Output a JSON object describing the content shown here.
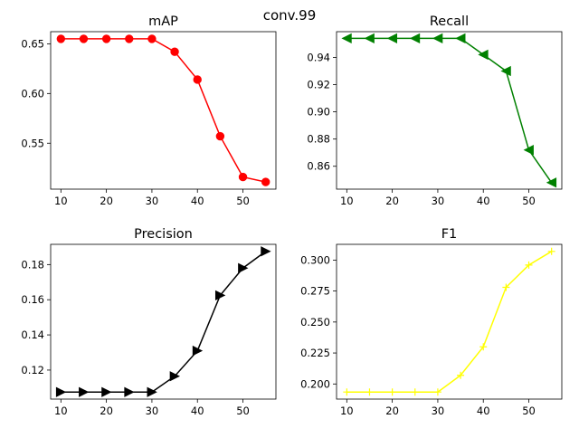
{
  "figure": {
    "suptitle": "conv.99"
  },
  "chart_data": [
    {
      "type": "line",
      "title": "mAP",
      "x": [
        10,
        15,
        20,
        25,
        30,
        35,
        40,
        45,
        50,
        55
      ],
      "series": [
        {
          "values": [
            0.655,
            0.655,
            0.655,
            0.655,
            0.655,
            0.642,
            0.614,
            0.557,
            0.516,
            0.511
          ],
          "color": "#ff0000",
          "marker": "circle"
        }
      ],
      "xlim": [
        7.75,
        57.25
      ],
      "ylim": [
        0.5038,
        0.6622
      ],
      "xticks": [
        10,
        20,
        30,
        40,
        50
      ],
      "yticks": [
        0.55,
        0.6,
        0.65
      ],
      "ytick_labels": [
        "0.55",
        "0.60",
        "0.65"
      ],
      "grid": false
    },
    {
      "type": "line",
      "title": "Recall",
      "x": [
        10,
        15,
        20,
        25,
        30,
        35,
        40,
        45,
        50,
        55
      ],
      "series": [
        {
          "values": [
            0.954,
            0.954,
            0.954,
            0.954,
            0.954,
            0.954,
            0.942,
            0.93,
            0.872,
            0.848
          ],
          "color": "#008000",
          "marker": "triangle-left"
        }
      ],
      "xlim": [
        7.75,
        57.25
      ],
      "ylim": [
        0.8432,
        0.9589
      ],
      "xticks": [
        10,
        20,
        30,
        40,
        50
      ],
      "yticks": [
        0.86,
        0.88,
        0.9,
        0.92,
        0.94
      ],
      "ytick_labels": [
        "0.86",
        "0.88",
        "0.90",
        "0.92",
        "0.94"
      ],
      "grid": false
    },
    {
      "type": "line",
      "title": "Precision",
      "x": [
        10,
        15,
        20,
        25,
        30,
        35,
        40,
        45,
        50,
        55
      ],
      "series": [
        {
          "values": [
            0.1075,
            0.1075,
            0.1075,
            0.1075,
            0.1075,
            0.1165,
            0.131,
            0.1625,
            0.178,
            0.1875
          ],
          "color": "#000000",
          "marker": "triangle-right"
        }
      ],
      "xlim": [
        7.75,
        57.25
      ],
      "ylim": [
        0.1035,
        0.1915
      ],
      "xticks": [
        10,
        20,
        30,
        40,
        50
      ],
      "yticks": [
        0.12,
        0.14,
        0.16,
        0.18
      ],
      "ytick_labels": [
        "0.12",
        "0.14",
        "0.16",
        "0.18"
      ],
      "grid": false
    },
    {
      "type": "line",
      "title": "F1",
      "x": [
        10,
        15,
        20,
        25,
        30,
        35,
        40,
        45,
        50,
        55
      ],
      "series": [
        {
          "values": [
            0.1935,
            0.1935,
            0.1935,
            0.1935,
            0.1935,
            0.207,
            0.23,
            0.278,
            0.296,
            0.307
          ],
          "color": "#ffff00",
          "marker": "plus"
        }
      ],
      "xlim": [
        7.75,
        57.25
      ],
      "ylim": [
        0.1878,
        0.3127
      ],
      "xticks": [
        10,
        20,
        30,
        40,
        50
      ],
      "yticks": [
        0.2,
        0.225,
        0.25,
        0.275,
        0.3
      ],
      "ytick_labels": [
        "0.200",
        "0.225",
        "0.250",
        "0.275",
        "0.300"
      ],
      "grid": false
    }
  ]
}
